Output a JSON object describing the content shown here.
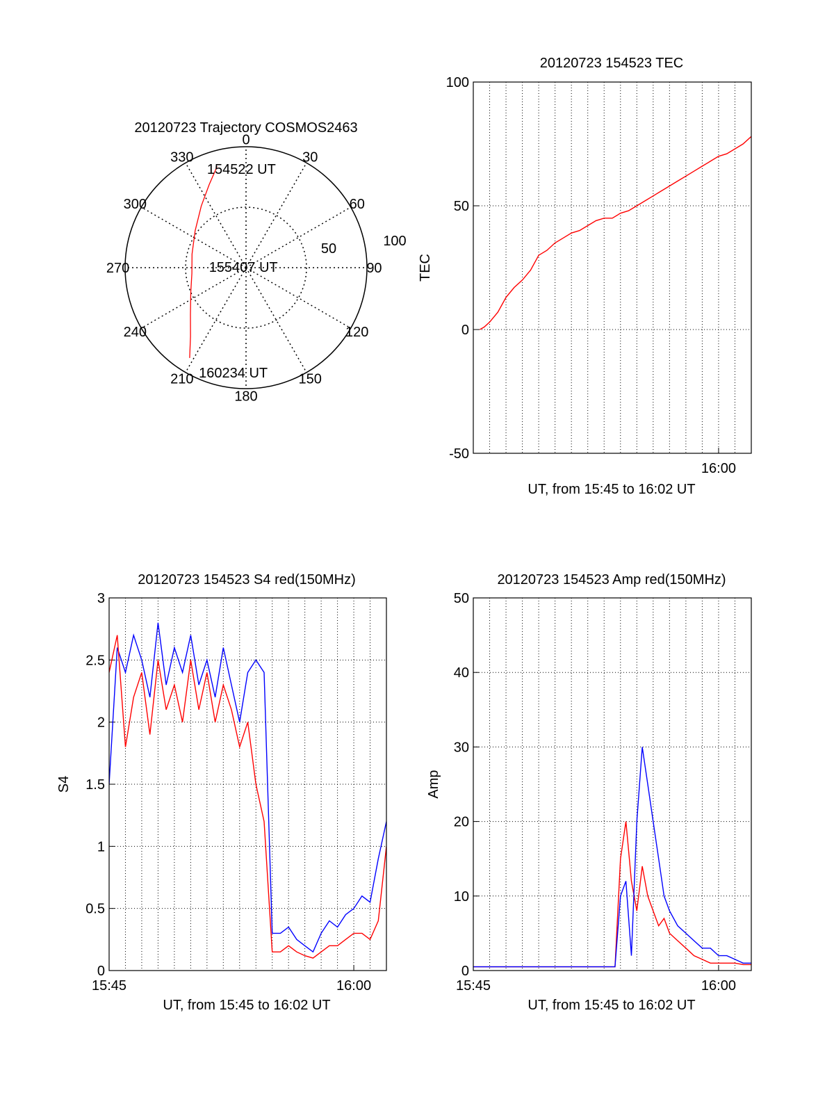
{
  "colors": {
    "red": "#ff0000",
    "blue": "#0000ff",
    "axis": "#000000",
    "grid": "#000000"
  },
  "chart_data": [
    {
      "type": "polar",
      "title": "20120723 Trajectory COSMOS2463",
      "azimuth_labels": [
        "0",
        "30",
        "60",
        "90",
        "120",
        "150",
        "180",
        "210",
        "240",
        "270",
        "300",
        "330"
      ],
      "radial_labels": [
        "50",
        "100"
      ],
      "rlim": [
        0,
        100
      ],
      "grid": true,
      "series": [
        {
          "color": "#ff0000",
          "points": [
            {
              "az": 344,
              "r": 87
            },
            {
              "az": 336,
              "r": 75
            },
            {
              "az": 324,
              "r": 63
            },
            {
              "az": 306,
              "r": 52
            },
            {
              "az": 284,
              "r": 46
            },
            {
              "az": 264,
              "r": 45
            },
            {
              "az": 246,
              "r": 50
            },
            {
              "az": 230,
              "r": 60
            },
            {
              "az": 219,
              "r": 73
            },
            {
              "az": 212,
              "r": 88
            }
          ]
        }
      ],
      "annotations": [
        {
          "text": "154522 UT",
          "az": 352,
          "r": 83
        },
        {
          "text": "155407 UT",
          "az": 276,
          "r": 10
        },
        {
          "text": "160234 UT",
          "az": 192,
          "r": 88
        }
      ]
    },
    {
      "type": "line",
      "title": "20120723 154523 TEC",
      "xlabel": "UT, from 15:45 to 16:02 UT",
      "ylabel": "TEC",
      "xlim": [
        "15:45",
        "16:02"
      ],
      "ylim": [
        -50,
        100
      ],
      "yticks": [
        "-50",
        "0",
        "50",
        "100"
      ],
      "xticks": [
        "16:00"
      ],
      "grid": true,
      "series": [
        {
          "color": "#ff0000",
          "x": [
            "15:45:24",
            "15:45:40",
            "15:46:00",
            "15:46:30",
            "15:47:00",
            "15:47:30",
            "15:48:00",
            "15:48:30",
            "15:49:00",
            "15:49:30",
            "15:50:00",
            "15:50:30",
            "15:51:00",
            "15:51:30",
            "15:52:00",
            "15:52:30",
            "15:53:00",
            "15:53:30",
            "15:54:00",
            "15:54:30",
            "15:55:00",
            "15:55:30",
            "15:56:00",
            "15:56:30",
            "15:57:00",
            "15:57:30",
            "15:58:00",
            "15:58:30",
            "15:59:00",
            "15:59:30",
            "16:00:00",
            "16:00:30",
            "16:01:00",
            "16:01:30",
            "16:02:00"
          ],
          "y": [
            0,
            1,
            3,
            7,
            13,
            17,
            20,
            24,
            30,
            32,
            35,
            37,
            39,
            40,
            42,
            44,
            45,
            45,
            47,
            48,
            50,
            52,
            54,
            56,
            58,
            60,
            62,
            64,
            66,
            68,
            70,
            71,
            73,
            75,
            78
          ]
        }
      ]
    },
    {
      "type": "line",
      "title": "20120723 154523 S4 red(150MHz)",
      "xlabel": "UT, from 15:45 to 16:02 UT",
      "ylabel": "S4",
      "xlim": [
        "15:45",
        "16:02"
      ],
      "ylim": [
        0,
        3
      ],
      "yticks": [
        "0",
        "0.5",
        "1",
        "1.5",
        "2",
        "2.5",
        "3"
      ],
      "xticks": [
        "15:45",
        "16:00"
      ],
      "grid": true,
      "series": [
        {
          "color": "#0000ff",
          "x": [
            "15:45:00",
            "15:45:30",
            "15:46:00",
            "15:46:30",
            "15:47:00",
            "15:47:30",
            "15:48:00",
            "15:48:30",
            "15:49:00",
            "15:49:30",
            "15:50:00",
            "15:50:30",
            "15:51:00",
            "15:51:30",
            "15:52:00",
            "15:52:30",
            "15:53:00",
            "15:53:30",
            "15:54:00",
            "15:54:30",
            "15:55:00",
            "15:55:30",
            "15:56:00",
            "15:56:30",
            "15:57:00",
            "15:57:30",
            "15:58:00",
            "15:58:30",
            "15:59:00",
            "15:59:30",
            "16:00:00",
            "16:00:30",
            "16:01:00",
            "16:01:30",
            "16:02:00"
          ],
          "y": [
            1.5,
            2.6,
            2.4,
            2.7,
            2.5,
            2.2,
            2.8,
            2.3,
            2.6,
            2.4,
            2.7,
            2.3,
            2.5,
            2.2,
            2.6,
            2.3,
            2.0,
            2.4,
            2.5,
            2.4,
            0.3,
            0.3,
            0.35,
            0.25,
            0.2,
            0.15,
            0.3,
            0.4,
            0.35,
            0.45,
            0.5,
            0.6,
            0.55,
            0.9,
            1.2
          ]
        },
        {
          "color": "#ff0000",
          "x": [
            "15:45:00",
            "15:45:30",
            "15:46:00",
            "15:46:30",
            "15:47:00",
            "15:47:30",
            "15:48:00",
            "15:48:30",
            "15:49:00",
            "15:49:30",
            "15:50:00",
            "15:50:30",
            "15:51:00",
            "15:51:30",
            "15:52:00",
            "15:52:30",
            "15:53:00",
            "15:53:30",
            "15:54:00",
            "15:54:30",
            "15:55:00",
            "15:55:30",
            "15:56:00",
            "15:56:30",
            "15:57:00",
            "15:57:30",
            "15:58:00",
            "15:58:30",
            "15:59:00",
            "15:59:30",
            "16:00:00",
            "16:00:30",
            "16:01:00",
            "16:01:30",
            "16:02:00"
          ],
          "y": [
            2.4,
            2.7,
            1.8,
            2.2,
            2.4,
            1.9,
            2.5,
            2.1,
            2.3,
            2.0,
            2.5,
            2.1,
            2.4,
            2.0,
            2.3,
            2.1,
            1.8,
            2.0,
            1.5,
            1.2,
            0.15,
            0.15,
            0.2,
            0.15,
            0.12,
            0.1,
            0.15,
            0.2,
            0.2,
            0.25,
            0.3,
            0.3,
            0.25,
            0.4,
            1.0
          ]
        }
      ]
    },
    {
      "type": "line",
      "title": "20120723 154523 Amp red(150MHz)",
      "xlabel": "UT, from 15:45 to 16:02 UT",
      "ylabel": "Amp",
      "xlim": [
        "15:45",
        "16:02"
      ],
      "ylim": [
        0,
        50
      ],
      "yticks": [
        "0",
        "10",
        "20",
        "30",
        "40",
        "50"
      ],
      "xticks": [
        "15:45",
        "16:00"
      ],
      "grid": true,
      "series": [
        {
          "color": "#ff0000",
          "x": [
            "15:45:00",
            "15:47:00",
            "15:49:00",
            "15:51:00",
            "15:53:00",
            "15:53:40",
            "15:54:00",
            "15:54:20",
            "15:54:40",
            "15:55:00",
            "15:55:20",
            "15:55:40",
            "15:56:00",
            "15:56:20",
            "15:56:40",
            "15:57:00",
            "15:57:30",
            "15:58:00",
            "15:58:30",
            "15:59:00",
            "15:59:30",
            "16:00:00",
            "16:00:30",
            "16:01:00",
            "16:01:30",
            "16:02:00"
          ],
          "y": [
            0.5,
            0.5,
            0.5,
            0.5,
            0.5,
            0.5,
            15,
            20,
            12,
            8,
            14,
            10,
            8,
            6,
            7,
            5,
            4,
            3,
            2,
            1.5,
            1,
            1,
            1,
            1,
            0.8,
            0.8
          ]
        },
        {
          "color": "#0000ff",
          "x": [
            "15:45:00",
            "15:47:00",
            "15:49:00",
            "15:51:00",
            "15:53:00",
            "15:53:40",
            "15:54:00",
            "15:54:20",
            "15:54:40",
            "15:55:00",
            "15:55:20",
            "15:55:40",
            "15:56:00",
            "15:56:20",
            "15:56:40",
            "15:57:00",
            "15:57:30",
            "15:58:00",
            "15:58:30",
            "15:59:00",
            "15:59:30",
            "16:00:00",
            "16:00:30",
            "16:01:00",
            "16:01:30",
            "16:02:00"
          ],
          "y": [
            0.5,
            0.5,
            0.5,
            0.5,
            0.5,
            0.5,
            10,
            12,
            2,
            20,
            30,
            25,
            20,
            15,
            10,
            8,
            6,
            5,
            4,
            3,
            3,
            2,
            2,
            1.5,
            1,
            1
          ]
        }
      ]
    }
  ]
}
